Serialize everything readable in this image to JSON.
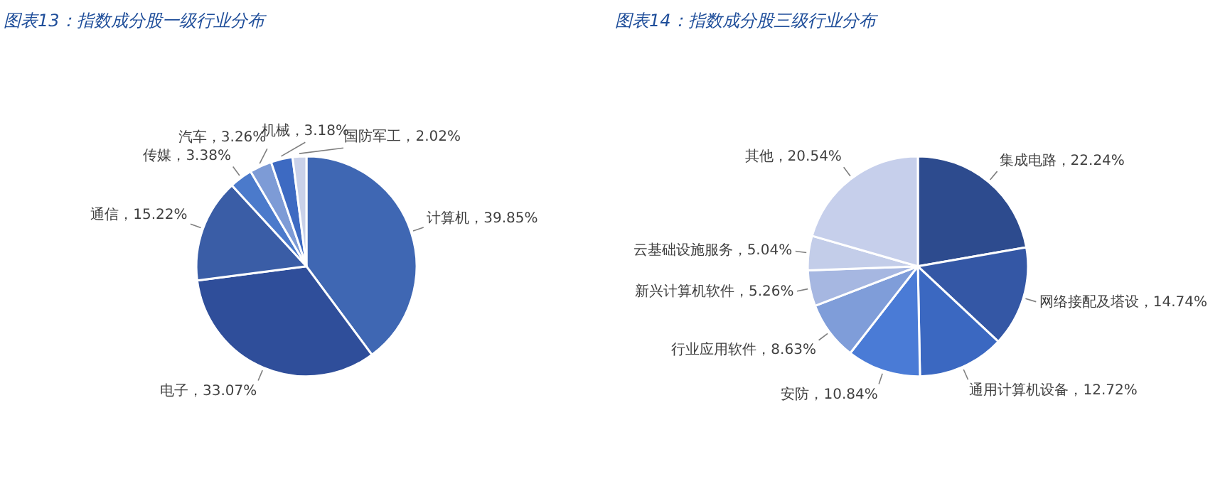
{
  "chart_data": [
    {
      "type": "pie",
      "title": "图表13：指数成分股一级行业分布",
      "categories": [
        "计算机",
        "电子",
        "通信",
        "传媒",
        "汽车",
        "机械",
        "国防军工"
      ],
      "values": [
        39.85,
        33.07,
        15.22,
        3.38,
        3.26,
        3.18,
        2.02
      ],
      "value_labels": [
        "39.85%",
        "33.07%",
        "15.22%",
        "3.38%",
        "3.26%",
        "3.18%",
        "2.02%"
      ],
      "colors": [
        "#3f67b3",
        "#2f4e9a",
        "#3a5da6",
        "#4b7acb",
        "#7d9bd6",
        "#3d6ac2",
        "#c9d1e9"
      ]
    },
    {
      "type": "pie",
      "title": "图表14：指数成分股三级行业分布",
      "categories": [
        "集成电路",
        "网络接配及塔设",
        "通用计算机设备",
        "安防",
        "行业应用软件",
        "新兴计算机软件",
        "云基础设施服务",
        "其他"
      ],
      "values": [
        22.24,
        14.74,
        12.72,
        10.84,
        8.63,
        5.26,
        5.04,
        20.54
      ],
      "value_labels": [
        "22.24%",
        "14.74%",
        "12.72%",
        "10.84%",
        "8.63%",
        "5.26%",
        "5.04%",
        "20.54%"
      ],
      "colors": [
        "#2d4b8e",
        "#3457a5",
        "#3b68c1",
        "#4a7bd6",
        "#7f9dd9",
        "#a6b7e1",
        "#c3cde9",
        "#c6cfeb"
      ]
    }
  ]
}
